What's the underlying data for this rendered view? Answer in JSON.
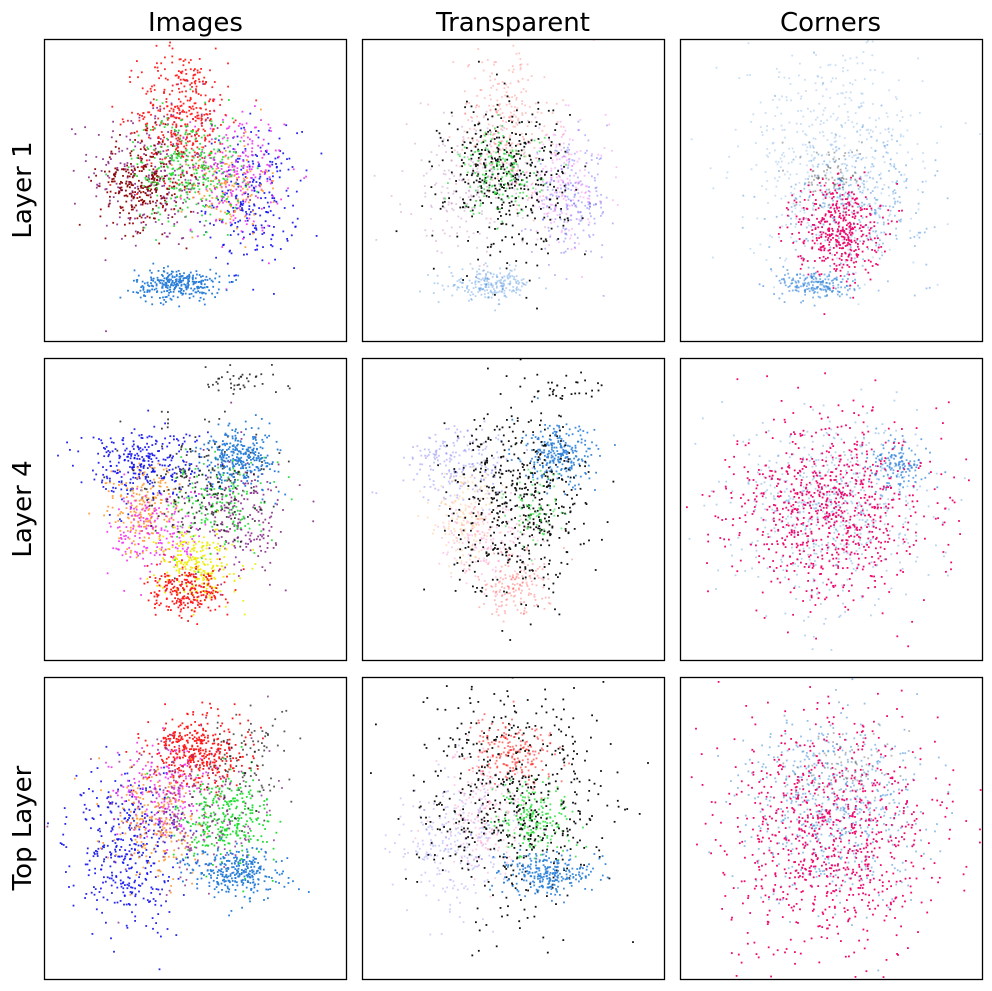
{
  "chart_data": {
    "type": "scatter",
    "layout": "3x3 grid of embedding scatter plots, no axis ticks or tick labels",
    "columns": [
      "Images",
      "Transparent",
      "Corners"
    ],
    "rows": [
      "Layer 1",
      "Layer 4",
      "Top Layer"
    ],
    "xlim": [
      -1,
      1
    ],
    "ylim": [
      -1,
      1
    ],
    "grid": false,
    "colors": {
      "red": "#ff1a1a",
      "green": "#22dd33",
      "dark_red": "#8b0000",
      "purple": "#8a2b8a",
      "blue": "#1010ee",
      "light_blue": "#2a7fd8",
      "magenta": "#ee33ee",
      "yellow": "#eeee11",
      "orange": "#ff9933",
      "pink": "#ff55aa",
      "black": "#111111",
      "corner_pink": "#ee0a6e"
    },
    "panels": [
      {
        "row": "Layer 1",
        "column": "Images",
        "clusters": [
          {
            "color": "purple",
            "cx": -0.25,
            "cy": 0.12,
            "sx": 0.22,
            "sy": 0.25,
            "n": 300,
            "alpha": 0.9
          },
          {
            "color": "blue",
            "cx": 0.38,
            "cy": -0.05,
            "sx": 0.15,
            "sy": 0.22,
            "n": 260,
            "alpha": 0.9
          },
          {
            "color": "magenta",
            "cx": 0.28,
            "cy": 0.12,
            "sx": 0.15,
            "sy": 0.2,
            "n": 220,
            "alpha": 0.9
          },
          {
            "color": "orange",
            "cx": 0.2,
            "cy": 0.02,
            "sx": 0.14,
            "sy": 0.15,
            "n": 120,
            "alpha": 0.9
          },
          {
            "color": "red",
            "cx": -0.08,
            "cy": 0.5,
            "sx": 0.15,
            "sy": 0.22,
            "n": 380,
            "alpha": 0.95
          },
          {
            "color": "dark_red",
            "cx": -0.35,
            "cy": 0.05,
            "sx": 0.14,
            "sy": 0.15,
            "n": 280,
            "alpha": 0.95
          },
          {
            "color": "green",
            "cx": -0.05,
            "cy": 0.15,
            "sx": 0.18,
            "sy": 0.18,
            "n": 300,
            "alpha": 0.9
          },
          {
            "color": "light_blue",
            "cx": -0.12,
            "cy": -0.62,
            "sx": 0.14,
            "sy": 0.05,
            "n": 300,
            "alpha": 1.0
          }
        ]
      },
      {
        "row": "Layer 1",
        "column": "Transparent",
        "clusters": [
          {
            "color": "red",
            "cx": -0.05,
            "cy": 0.45,
            "sx": 0.16,
            "sy": 0.25,
            "n": 260,
            "alpha": 0.25
          },
          {
            "color": "purple",
            "cx": -0.3,
            "cy": 0.05,
            "sx": 0.2,
            "sy": 0.22,
            "n": 200,
            "alpha": 0.25
          },
          {
            "color": "magenta",
            "cx": 0.32,
            "cy": 0.05,
            "sx": 0.15,
            "sy": 0.2,
            "n": 200,
            "alpha": 0.3
          },
          {
            "color": "blue",
            "cx": 0.38,
            "cy": -0.08,
            "sx": 0.13,
            "sy": 0.18,
            "n": 200,
            "alpha": 0.3
          },
          {
            "color": "light_blue",
            "cx": -0.15,
            "cy": -0.62,
            "sx": 0.14,
            "sy": 0.05,
            "n": 220,
            "alpha": 0.35
          },
          {
            "color": "black",
            "cx": -0.05,
            "cy": 0.1,
            "sx": 0.2,
            "sy": 0.25,
            "n": 420,
            "alpha": 1.0
          },
          {
            "color": "green",
            "cx": -0.08,
            "cy": 0.12,
            "sx": 0.14,
            "sy": 0.14,
            "n": 160,
            "alpha": 0.7
          }
        ]
      },
      {
        "row": "Layer 1",
        "column": "Corners",
        "clusters": [
          {
            "color": "light_blue",
            "cx": 0.0,
            "cy": 0.25,
            "sx": 0.3,
            "sy": 0.35,
            "n": 500,
            "alpha": 0.25
          },
          {
            "color": "light_blue",
            "cx": 0.15,
            "cy": -0.1,
            "sx": 0.25,
            "sy": 0.2,
            "n": 300,
            "alpha": 0.45
          },
          {
            "color": "light_blue",
            "cx": -0.1,
            "cy": -0.62,
            "sx": 0.12,
            "sy": 0.05,
            "n": 200,
            "alpha": 0.6
          },
          {
            "color": "black",
            "cx": 0.0,
            "cy": 0.1,
            "sx": 0.1,
            "sy": 0.1,
            "n": 80,
            "alpha": 0.35
          },
          {
            "color": "corner_pink",
            "cx": 0.05,
            "cy": -0.25,
            "sx": 0.14,
            "sy": 0.16,
            "n": 420,
            "alpha": 1.0
          }
        ]
      },
      {
        "row": "Layer 4",
        "column": "Images",
        "clusters": [
          {
            "color": "blue",
            "cx": -0.35,
            "cy": 0.3,
            "sx": 0.2,
            "sy": 0.12,
            "n": 300,
            "alpha": 0.9
          },
          {
            "color": "orange",
            "cx": -0.35,
            "cy": 0.0,
            "sx": 0.12,
            "sy": 0.15,
            "n": 200,
            "alpha": 0.9
          },
          {
            "color": "magenta",
            "cx": -0.25,
            "cy": -0.15,
            "sx": 0.15,
            "sy": 0.15,
            "n": 200,
            "alpha": 0.9
          },
          {
            "color": "purple",
            "cx": 0.3,
            "cy": -0.05,
            "sx": 0.15,
            "sy": 0.2,
            "n": 220,
            "alpha": 0.9
          },
          {
            "color": "yellow",
            "cx": 0.0,
            "cy": -0.35,
            "sx": 0.12,
            "sy": 0.12,
            "n": 260,
            "alpha": 1.0
          },
          {
            "color": "red",
            "cx": -0.05,
            "cy": -0.55,
            "sx": 0.13,
            "sy": 0.08,
            "n": 240,
            "alpha": 1.0
          },
          {
            "color": "green",
            "cx": 0.15,
            "cy": 0.05,
            "sx": 0.15,
            "sy": 0.15,
            "n": 160,
            "alpha": 0.9
          },
          {
            "color": "black",
            "cx": 0.05,
            "cy": 0.2,
            "sx": 0.2,
            "sy": 0.2,
            "n": 200,
            "alpha": 0.8
          },
          {
            "color": "black",
            "cx": 0.3,
            "cy": 0.85,
            "sx": 0.15,
            "sy": 0.04,
            "n": 40,
            "alpha": 0.8
          },
          {
            "color": "light_blue",
            "cx": 0.3,
            "cy": 0.35,
            "sx": 0.12,
            "sy": 0.1,
            "n": 300,
            "alpha": 1.0
          }
        ]
      },
      {
        "row": "Layer 4",
        "column": "Transparent",
        "clusters": [
          {
            "color": "blue",
            "cx": -0.35,
            "cy": 0.3,
            "sx": 0.18,
            "sy": 0.12,
            "n": 200,
            "alpha": 0.25
          },
          {
            "color": "orange",
            "cx": -0.3,
            "cy": -0.05,
            "sx": 0.12,
            "sy": 0.15,
            "n": 160,
            "alpha": 0.3
          },
          {
            "color": "pink",
            "cx": -0.2,
            "cy": -0.2,
            "sx": 0.15,
            "sy": 0.15,
            "n": 160,
            "alpha": 0.3
          },
          {
            "color": "red",
            "cx": 0.0,
            "cy": -0.5,
            "sx": 0.12,
            "sy": 0.1,
            "n": 160,
            "alpha": 0.3
          },
          {
            "color": "light_blue",
            "cx": 0.3,
            "cy": 0.35,
            "sx": 0.12,
            "sy": 0.1,
            "n": 260,
            "alpha": 0.9
          },
          {
            "color": "black",
            "cx": 0.05,
            "cy": 0.05,
            "sx": 0.22,
            "sy": 0.3,
            "n": 520,
            "alpha": 1.0
          },
          {
            "color": "black",
            "cx": 0.35,
            "cy": 0.8,
            "sx": 0.12,
            "sy": 0.06,
            "n": 30,
            "alpha": 1.0
          },
          {
            "color": "green",
            "cx": 0.15,
            "cy": 0.0,
            "sx": 0.1,
            "sy": 0.12,
            "n": 80,
            "alpha": 0.6
          }
        ]
      },
      {
        "row": "Layer 4",
        "column": "Corners",
        "clusters": [
          {
            "color": "light_blue",
            "cx": 0.0,
            "cy": 0.0,
            "sx": 0.3,
            "sy": 0.3,
            "n": 600,
            "alpha": 0.35
          },
          {
            "color": "light_blue",
            "cx": 0.45,
            "cy": 0.3,
            "sx": 0.1,
            "sy": 0.08,
            "n": 150,
            "alpha": 0.7
          },
          {
            "color": "corner_pink",
            "cx": 0.0,
            "cy": 0.0,
            "sx": 0.32,
            "sy": 0.3,
            "n": 850,
            "alpha": 1.0
          }
        ]
      },
      {
        "row": "Top Layer",
        "column": "Images",
        "clusters": [
          {
            "color": "blue",
            "cx": -0.45,
            "cy": -0.15,
            "sx": 0.18,
            "sy": 0.25,
            "n": 400,
            "alpha": 0.9
          },
          {
            "color": "red",
            "cx": 0.0,
            "cy": 0.5,
            "sx": 0.16,
            "sy": 0.12,
            "n": 400,
            "alpha": 1.0
          },
          {
            "color": "magenta",
            "cx": -0.2,
            "cy": 0.25,
            "sx": 0.15,
            "sy": 0.15,
            "n": 200,
            "alpha": 0.9
          },
          {
            "color": "orange",
            "cx": -0.25,
            "cy": 0.05,
            "sx": 0.15,
            "sy": 0.2,
            "n": 200,
            "alpha": 0.9
          },
          {
            "color": "green",
            "cx": 0.2,
            "cy": 0.05,
            "sx": 0.15,
            "sy": 0.15,
            "n": 300,
            "alpha": 1.0
          },
          {
            "color": "purple",
            "cx": -0.05,
            "cy": 0.1,
            "sx": 0.25,
            "sy": 0.25,
            "n": 250,
            "alpha": 0.8
          },
          {
            "color": "light_blue",
            "cx": 0.28,
            "cy": -0.3,
            "sx": 0.15,
            "sy": 0.08,
            "n": 300,
            "alpha": 1.0
          },
          {
            "color": "black",
            "cx": 0.35,
            "cy": 0.45,
            "sx": 0.15,
            "sy": 0.2,
            "n": 100,
            "alpha": 0.7
          }
        ]
      },
      {
        "row": "Top Layer",
        "column": "Transparent",
        "clusters": [
          {
            "color": "blue",
            "cx": -0.4,
            "cy": -0.1,
            "sx": 0.18,
            "sy": 0.22,
            "n": 250,
            "alpha": 0.2
          },
          {
            "color": "pink",
            "cx": -0.2,
            "cy": 0.1,
            "sx": 0.15,
            "sy": 0.2,
            "n": 200,
            "alpha": 0.3
          },
          {
            "color": "red",
            "cx": 0.0,
            "cy": 0.5,
            "sx": 0.14,
            "sy": 0.1,
            "n": 200,
            "alpha": 0.6
          },
          {
            "color": "green",
            "cx": 0.15,
            "cy": 0.05,
            "sx": 0.12,
            "sy": 0.12,
            "n": 200,
            "alpha": 0.8
          },
          {
            "color": "black",
            "cx": 0.0,
            "cy": 0.2,
            "sx": 0.32,
            "sy": 0.35,
            "n": 560,
            "alpha": 1.0
          },
          {
            "color": "light_blue",
            "cx": 0.22,
            "cy": -0.3,
            "sx": 0.14,
            "sy": 0.07,
            "n": 260,
            "alpha": 0.9
          }
        ]
      },
      {
        "row": "Top Layer",
        "column": "Corners",
        "clusters": [
          {
            "color": "light_blue",
            "cx": 0.0,
            "cy": 0.15,
            "sx": 0.3,
            "sy": 0.3,
            "n": 600,
            "alpha": 0.5
          },
          {
            "color": "black",
            "cx": 0.1,
            "cy": 0.4,
            "sx": 0.2,
            "sy": 0.12,
            "n": 80,
            "alpha": 0.3
          },
          {
            "color": "corner_pink",
            "cx": 0.0,
            "cy": -0.05,
            "sx": 0.35,
            "sy": 0.38,
            "n": 900,
            "alpha": 1.0
          }
        ]
      }
    ]
  }
}
